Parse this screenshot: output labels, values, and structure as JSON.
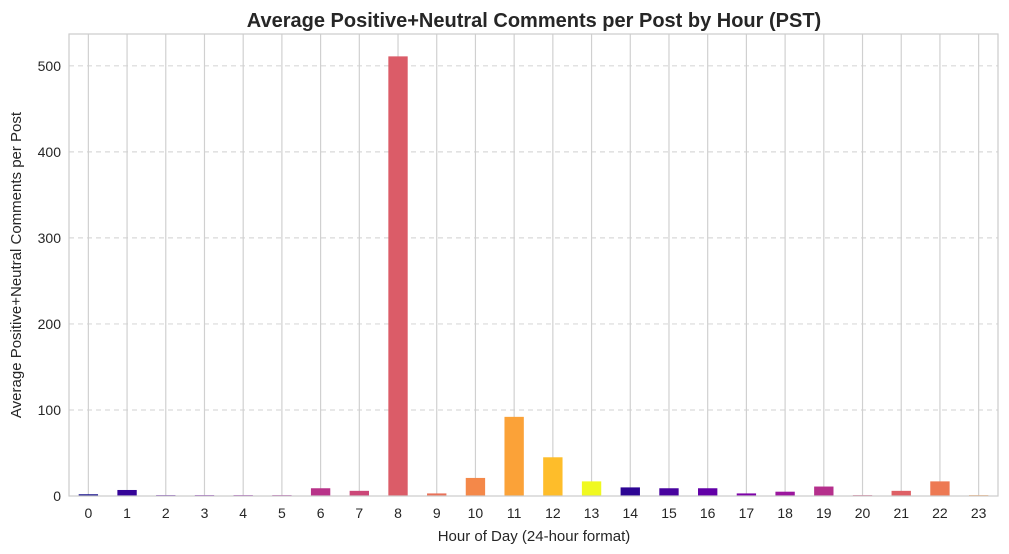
{
  "chart_data": {
    "type": "bar",
    "title": "Average Positive+Neutral Comments per Post by Hour (PST)",
    "xlabel": "Hour of Day (24-hour format)",
    "ylabel": "Average Positive+Neutral Comments per Post",
    "categories": [
      "0",
      "1",
      "2",
      "3",
      "4",
      "5",
      "6",
      "7",
      "8",
      "9",
      "10",
      "11",
      "12",
      "13",
      "14",
      "15",
      "16",
      "17",
      "18",
      "19",
      "20",
      "21",
      "22",
      "23"
    ],
    "values": [
      2,
      7,
      1,
      1,
      1,
      1,
      9,
      6,
      511,
      3,
      21,
      92,
      45,
      17,
      10,
      9,
      9,
      3,
      5,
      11,
      1,
      6,
      17,
      1
    ],
    "ylim": [
      0,
      537
    ],
    "yticks": [
      0,
      100,
      200,
      300,
      400,
      500
    ],
    "colors": [
      "#0d0887",
      "#350498",
      "#5302a3",
      "#6f00a8",
      "#8b0aa5",
      "#a31e9a",
      "#b83289",
      "#cc4778",
      "#db5c68",
      "#e97158",
      "#f48849",
      "#fba238",
      "#febd2a",
      "#f0f921",
      "#2c0594",
      "#48039f",
      "#6200a7",
      "#7e03a8",
      "#9c179e",
      "#b52f8c",
      "#cc4778",
      "#de5f65",
      "#ed7953",
      "#f89540"
    ],
    "grid": {
      "x": true,
      "y": true,
      "y_style": "dashed"
    },
    "legend": "none"
  }
}
